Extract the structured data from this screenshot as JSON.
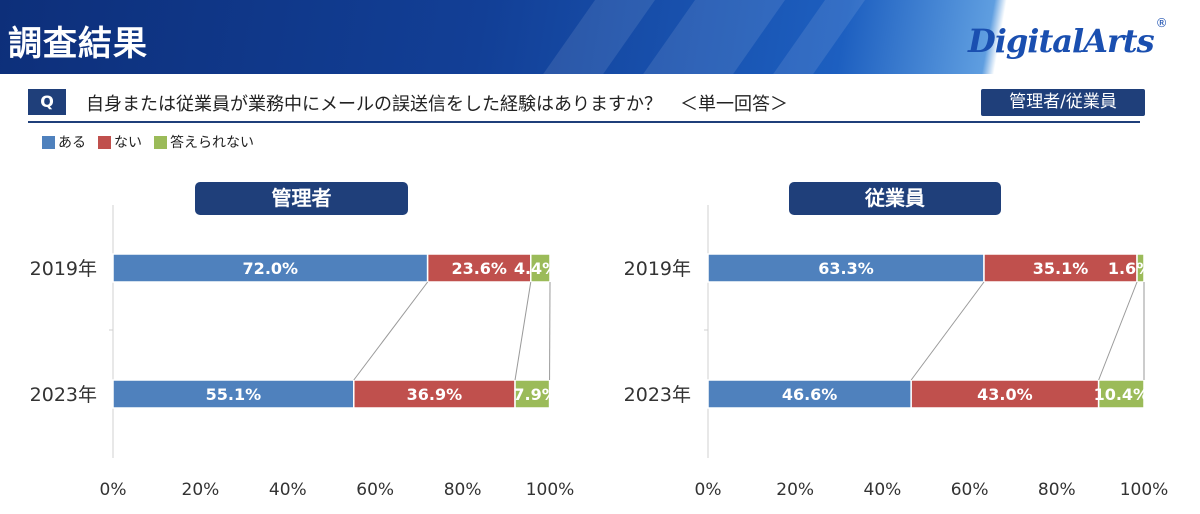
{
  "header": {
    "title": "調査結果",
    "logo_text": "DigitalArts",
    "logo_mark": "®"
  },
  "question": {
    "badge": "Q",
    "text": "自身または従業員が業務中にメールの誤送信をした経験はありますか？　＜単一回答＞",
    "target": "管理者/従業員"
  },
  "legend": [
    {
      "label": "ある",
      "color": "#4f81bd"
    },
    {
      "label": "ない",
      "color": "#c0504d"
    },
    {
      "label": "答えられない",
      "color": "#9bbb59"
    }
  ],
  "chart_data": [
    {
      "type": "bar",
      "orientation": "horizontal",
      "stacked": "100%",
      "title": "管理者",
      "categories": [
        "2019年",
        "2023年"
      ],
      "series": [
        {
          "name": "ある",
          "values": [
            72.0,
            55.1
          ],
          "labels": [
            "72.0%",
            "55.1%"
          ],
          "color": "#4f81bd"
        },
        {
          "name": "ない",
          "values": [
            23.6,
            36.9
          ],
          "labels": [
            "23.6%",
            "36.9%"
          ],
          "color": "#c0504d"
        },
        {
          "name": "答えられない",
          "values": [
            4.4,
            7.9
          ],
          "labels": [
            "4.4%",
            "7.9%"
          ],
          "color": "#9bbb59"
        }
      ],
      "xlim": [
        0,
        100
      ],
      "xticks": [
        "0%",
        "20%",
        "40%",
        "60%",
        "80%",
        "100%"
      ],
      "series_lines": true
    },
    {
      "type": "bar",
      "orientation": "horizontal",
      "stacked": "100%",
      "title": "従業員",
      "categories": [
        "2019年",
        "2023年"
      ],
      "series": [
        {
          "name": "ある",
          "values": [
            63.3,
            46.6
          ],
          "labels": [
            "63.3%",
            "46.6%"
          ],
          "color": "#4f81bd"
        },
        {
          "name": "ない",
          "values": [
            35.1,
            43.0
          ],
          "labels": [
            "35.1%",
            "43.0%"
          ],
          "color": "#c0504d"
        },
        {
          "name": "答えられない",
          "values": [
            1.6,
            10.4
          ],
          "labels": [
            "1.6%",
            "10.4%"
          ],
          "color": "#9bbb59"
        }
      ],
      "xlim": [
        0,
        100
      ],
      "xticks": [
        "0%",
        "20%",
        "40%",
        "60%",
        "80%",
        "100%"
      ],
      "series_lines": true
    }
  ]
}
